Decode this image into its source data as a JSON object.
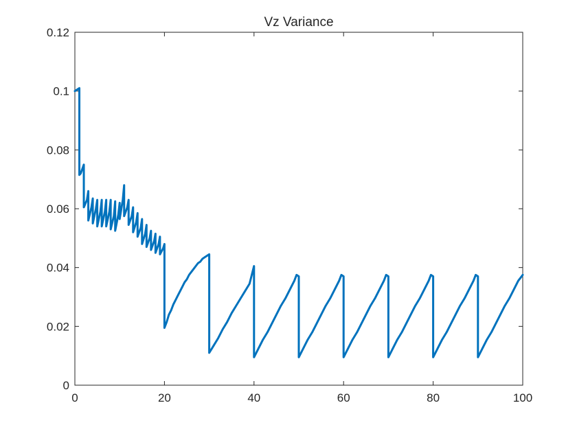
{
  "chart_data": {
    "type": "line",
    "title": "Vz Variance",
    "xlabel": "",
    "ylabel": "",
    "xlim": [
      0,
      100
    ],
    "ylim": [
      0,
      0.12
    ],
    "grid": false,
    "legend": "none",
    "xticks": [
      0,
      20,
      40,
      60,
      80,
      100
    ],
    "xtick_labels": [
      "0",
      "20",
      "40",
      "60",
      "80",
      "100"
    ],
    "yticks": [
      0,
      0.02,
      0.04,
      0.06,
      0.08,
      0.1,
      0.12
    ],
    "ytick_labels": [
      "0",
      "0.02",
      "0.04",
      "0.06",
      "0.08",
      "0.1",
      "0.12"
    ],
    "series": [
      {
        "color": "#0072BD",
        "x": [
          0,
          0.5,
          1,
          1,
          1.3,
          2,
          2,
          2.7,
          3,
          3,
          3.7,
          4,
          4,
          4.7,
          5,
          5,
          5.7,
          6,
          6,
          6.7,
          7,
          7,
          7.7,
          8,
          8,
          8.7,
          9,
          9,
          9.7,
          10,
          10,
          10.7,
          11,
          11,
          11.7,
          12,
          12,
          12.7,
          13,
          13,
          13.7,
          14,
          14,
          14.7,
          15,
          15,
          15.7,
          16,
          16,
          16.7,
          17,
          17,
          17.7,
          18,
          18,
          18.7,
          19,
          19,
          19.7,
          20,
          20,
          20.5,
          21,
          21.5,
          22,
          22.5,
          23,
          23.5,
          24,
          24.5,
          25,
          25.5,
          26,
          26.5,
          27,
          27.5,
          28,
          28.5,
          29,
          29.5,
          30,
          30,
          31,
          32,
          33,
          34,
          35,
          36,
          37,
          38,
          39,
          39.5,
          40,
          40,
          41,
          42,
          43,
          44,
          45,
          46,
          47,
          48,
          49,
          49.5,
          50,
          50,
          51,
          52,
          53,
          54,
          55,
          56,
          57,
          58,
          59,
          59.5,
          60,
          60,
          61,
          62,
          63,
          64,
          65,
          66,
          67,
          68,
          69,
          69.5,
          70,
          70,
          71,
          72,
          73,
          74,
          75,
          76,
          77,
          78,
          79,
          79.5,
          80,
          80,
          81,
          82,
          83,
          84,
          85,
          86,
          87,
          88,
          89,
          89.5,
          90,
          90,
          91,
          92,
          93,
          94,
          95,
          96,
          97,
          98,
          99,
          99.5,
          100
        ],
        "y": [
          0.1,
          0.1005,
          0.101,
          0.0715,
          0.072,
          0.075,
          0.0605,
          0.063,
          0.066,
          0.056,
          0.0605,
          0.0635,
          0.055,
          0.06,
          0.063,
          0.054,
          0.059,
          0.063,
          0.054,
          0.059,
          0.063,
          0.054,
          0.059,
          0.063,
          0.053,
          0.0575,
          0.0625,
          0.0525,
          0.058,
          0.062,
          0.0565,
          0.063,
          0.068,
          0.0575,
          0.0605,
          0.063,
          0.0545,
          0.0575,
          0.0605,
          0.052,
          0.0555,
          0.0585,
          0.0505,
          0.0535,
          0.0565,
          0.048,
          0.0515,
          0.0545,
          0.047,
          0.05,
          0.0525,
          0.046,
          0.049,
          0.0515,
          0.045,
          0.048,
          0.0505,
          0.0445,
          0.0465,
          0.048,
          0.0195,
          0.0215,
          0.024,
          0.0255,
          0.0275,
          0.029,
          0.0305,
          0.032,
          0.0335,
          0.035,
          0.036,
          0.0375,
          0.0385,
          0.0395,
          0.0405,
          0.0415,
          0.042,
          0.043,
          0.0435,
          0.044,
          0.0445,
          0.011,
          0.0135,
          0.016,
          0.019,
          0.0215,
          0.0245,
          0.027,
          0.0295,
          0.032,
          0.0345,
          0.0375,
          0.0405,
          0.0095,
          0.0125,
          0.0155,
          0.018,
          0.021,
          0.024,
          0.027,
          0.0295,
          0.0325,
          0.0355,
          0.0375,
          0.037,
          0.0095,
          0.0125,
          0.0155,
          0.018,
          0.021,
          0.024,
          0.027,
          0.0295,
          0.0325,
          0.0355,
          0.0375,
          0.037,
          0.0095,
          0.0125,
          0.0155,
          0.018,
          0.021,
          0.024,
          0.027,
          0.0295,
          0.0325,
          0.0355,
          0.0375,
          0.037,
          0.0095,
          0.0125,
          0.0155,
          0.018,
          0.021,
          0.024,
          0.027,
          0.0295,
          0.0325,
          0.0355,
          0.0375,
          0.037,
          0.0095,
          0.0125,
          0.0155,
          0.018,
          0.021,
          0.024,
          0.027,
          0.0295,
          0.0325,
          0.0355,
          0.0375,
          0.037,
          0.0095,
          0.0125,
          0.0155,
          0.018,
          0.021,
          0.024,
          0.027,
          0.0295,
          0.0325,
          0.0355,
          0.0365,
          0.0375
        ]
      }
    ]
  }
}
